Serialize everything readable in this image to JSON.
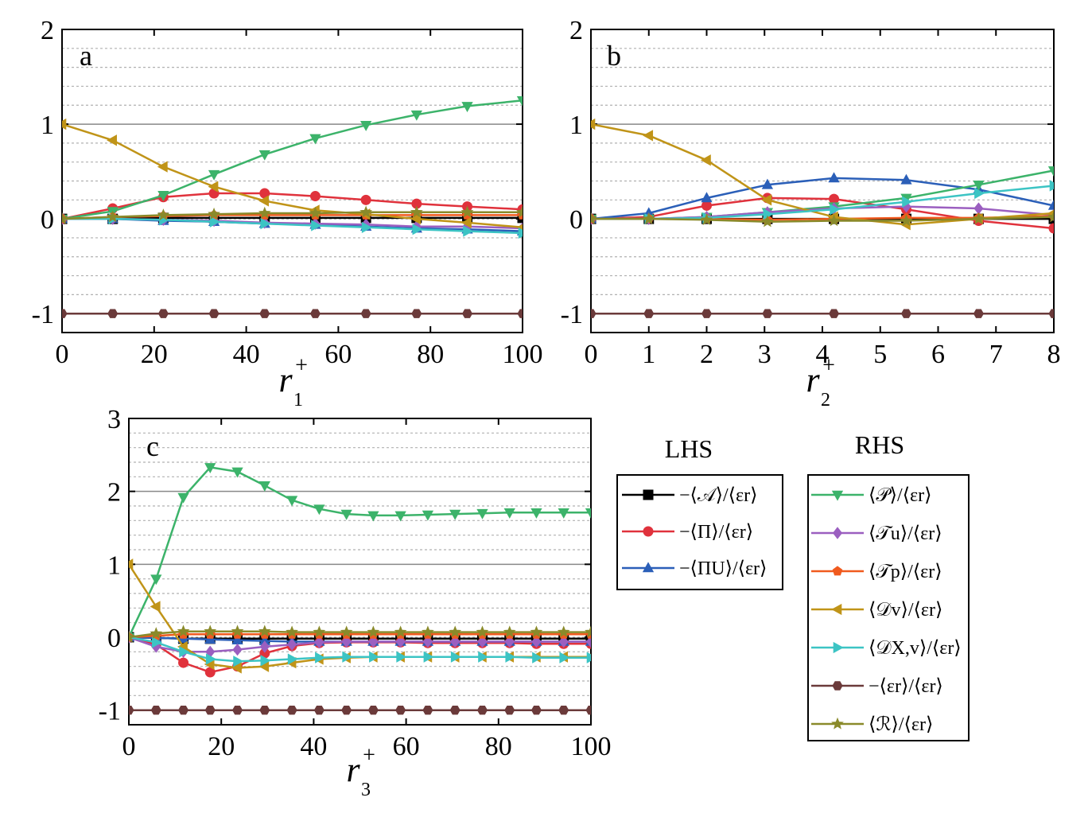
{
  "colors": {
    "A": "#000000",
    "Pi": "#e0323c",
    "PiU": "#2b5fb8",
    "P": "#3cb36a",
    "Tu": "#9b5fc0",
    "Tp": "#f05a1e",
    "Dv": "#c09418",
    "DXv": "#3cc4c4",
    "er": "#6b3a3a",
    "R": "#8a8a2a",
    "grid_major": "#888888",
    "grid_minor": "#b0b0b0"
  },
  "legend": {
    "lhs_title": "LHS",
    "rhs_title": "RHS",
    "lhs_items": [
      {
        "key": "A",
        "marker": "square",
        "label": "−⟨𝒜⟩/⟨εr⟩"
      },
      {
        "key": "Pi",
        "marker": "circle",
        "label": "−⟨Π⟩/⟨εr⟩"
      },
      {
        "key": "PiU",
        "marker": "triangle-up",
        "label": "−⟨ΠU⟩/⟨εr⟩"
      }
    ],
    "rhs_items": [
      {
        "key": "P",
        "marker": "triangle-down",
        "label": "⟨𝒫⟩/⟨εr⟩"
      },
      {
        "key": "Tu",
        "marker": "diamond",
        "label": "⟨𝒯u⟩/⟨εr⟩"
      },
      {
        "key": "Tp",
        "marker": "pentagon",
        "label": "⟨𝒯p⟩/⟨εr⟩"
      },
      {
        "key": "Dv",
        "marker": "triangle-left",
        "label": "⟨𝒟v⟩/⟨εr⟩"
      },
      {
        "key": "DXv",
        "marker": "triangle-right",
        "label": "⟨𝒟X,v⟩/⟨εr⟩"
      },
      {
        "key": "er",
        "marker": "hexagon",
        "label": "−⟨εr⟩/⟨εr⟩"
      },
      {
        "key": "R",
        "marker": "star",
        "label": "⟨ℛ⟩/⟨εr⟩"
      }
    ]
  },
  "chart_data": [
    {
      "type": "line",
      "panel": "a",
      "xlabel_var": "r",
      "xlabel_sup": "+",
      "xlabel_sub": "1",
      "xlim": [
        0,
        100
      ],
      "ylim": [
        -1.2,
        2
      ],
      "xticks": [
        0,
        20,
        40,
        60,
        80,
        100
      ],
      "yticks": [
        -1,
        0,
        1,
        2
      ],
      "grid": true,
      "x": [
        0,
        11,
        22,
        33,
        44,
        55,
        66,
        77,
        88,
        100
      ],
      "series": [
        {
          "key": "A",
          "values": [
            0,
            0,
            0.01,
            0.01,
            0.01,
            0.01,
            0.01,
            0.01,
            0.01,
            0.01
          ]
        },
        {
          "key": "Pi",
          "values": [
            0,
            0.11,
            0.23,
            0.27,
            0.27,
            0.24,
            0.2,
            0.16,
            0.13,
            0.1
          ]
        },
        {
          "key": "PiU",
          "values": [
            0,
            0,
            -0.02,
            -0.03,
            -0.05,
            -0.06,
            -0.08,
            -0.1,
            -0.11,
            -0.13
          ]
        },
        {
          "key": "P",
          "values": [
            0,
            0.08,
            0.25,
            0.47,
            0.68,
            0.85,
            0.99,
            1.1,
            1.19,
            1.25
          ]
        },
        {
          "key": "Tu",
          "values": [
            0,
            0,
            -0.01,
            -0.02,
            -0.04,
            -0.05,
            -0.06,
            -0.08,
            -0.08,
            -0.1
          ]
        },
        {
          "key": "Tp",
          "values": [
            0,
            0.02,
            0.03,
            0.04,
            0.04,
            0.04,
            0.04,
            0.04,
            0.04,
            0.04
          ]
        },
        {
          "key": "Dv",
          "values": [
            1,
            0.83,
            0.55,
            0.34,
            0.19,
            0.09,
            0.05,
            0.0,
            -0.04,
            -0.09
          ]
        },
        {
          "key": "DXv",
          "values": [
            0,
            0,
            -0.01,
            -0.03,
            -0.05,
            -0.07,
            -0.09,
            -0.11,
            -0.13,
            -0.15
          ]
        },
        {
          "key": "er",
          "values": [
            -1,
            -1,
            -1,
            -1,
            -1,
            -1,
            -1,
            -1,
            -1,
            -1
          ]
        },
        {
          "key": "R",
          "values": [
            0,
            0.02,
            0.04,
            0.05,
            0.06,
            0.06,
            0.07,
            0.07,
            0.07,
            0.07
          ]
        }
      ]
    },
    {
      "type": "line",
      "panel": "b",
      "xlabel_var": "r",
      "xlabel_sup": "+",
      "xlabel_sub": "2",
      "xlim": [
        0,
        8
      ],
      "ylim": [
        -1.2,
        2
      ],
      "xticks": [
        0,
        1,
        2,
        3,
        4,
        5,
        6,
        7,
        8
      ],
      "yticks": [
        -1,
        0,
        1,
        2
      ],
      "grid": true,
      "x": [
        0,
        1,
        2,
        3.05,
        4.2,
        5.45,
        6.7,
        8
      ],
      "series": [
        {
          "key": "A",
          "values": [
            0,
            0,
            0,
            0,
            0,
            0,
            0,
            0
          ]
        },
        {
          "key": "Pi",
          "values": [
            0,
            0.02,
            0.14,
            0.22,
            0.21,
            0.1,
            -0.02,
            -0.1
          ]
        },
        {
          "key": "PiU",
          "values": [
            0,
            0.06,
            0.22,
            0.36,
            0.43,
            0.41,
            0.31,
            0.14
          ]
        },
        {
          "key": "P",
          "values": [
            0,
            0.0,
            0.02,
            0.07,
            0.13,
            0.22,
            0.36,
            0.51
          ]
        },
        {
          "key": "Tu",
          "values": [
            0,
            0.0,
            0.02,
            0.07,
            0.11,
            0.13,
            0.11,
            0.04
          ]
        },
        {
          "key": "Tp",
          "values": [
            0,
            0.0,
            0.0,
            -0.01,
            0.0,
            0.01,
            0.01,
            0.03
          ]
        },
        {
          "key": "Dv",
          "values": [
            1,
            0.88,
            0.62,
            0.2,
            0.02,
            -0.06,
            0.0,
            0.06
          ]
        },
        {
          "key": "DXv",
          "values": [
            0,
            0.0,
            0.01,
            0.05,
            0.1,
            0.18,
            0.27,
            0.35
          ]
        },
        {
          "key": "er",
          "values": [
            -1,
            -1,
            -1,
            -1,
            -1,
            -1,
            -1,
            -1
          ]
        },
        {
          "key": "R",
          "values": [
            0,
            0.0,
            -0.01,
            -0.03,
            -0.02,
            -0.02,
            0.0,
            0.02
          ]
        }
      ]
    },
    {
      "type": "line",
      "panel": "c",
      "xlabel_var": "r",
      "xlabel_sup": "+",
      "xlabel_sub": "3",
      "xlim": [
        0,
        100
      ],
      "ylim": [
        -1.2,
        3
      ],
      "xticks": [
        0,
        20,
        40,
        60,
        80,
        100
      ],
      "yticks": [
        -1,
        0,
        1,
        2,
        3
      ],
      "grid": true,
      "x": [
        0,
        5.9,
        11.8,
        17.6,
        23.5,
        29.4,
        35.3,
        41.2,
        47.1,
        52.9,
        58.8,
        64.7,
        70.6,
        76.5,
        82.4,
        88.2,
        94.1,
        100
      ],
      "series": [
        {
          "key": "A",
          "values": [
            0,
            -0.01,
            -0.02,
            -0.02,
            -0.02,
            -0.02,
            -0.02,
            -0.02,
            -0.02,
            -0.02,
            -0.02,
            -0.02,
            -0.02,
            -0.02,
            -0.02,
            -0.02,
            -0.02,
            -0.02
          ]
        },
        {
          "key": "Pi",
          "values": [
            0,
            -0.1,
            -0.35,
            -0.48,
            -0.4,
            -0.22,
            -0.12,
            -0.08,
            -0.07,
            -0.07,
            -0.07,
            -0.08,
            -0.08,
            -0.08,
            -0.08,
            -0.09,
            -0.09,
            -0.09
          ]
        },
        {
          "key": "PiU",
          "values": [
            0,
            -0.01,
            -0.02,
            -0.03,
            -0.04,
            -0.05,
            -0.06,
            -0.06,
            -0.06,
            -0.06,
            -0.06,
            -0.06,
            -0.06,
            -0.06,
            -0.06,
            -0.06,
            -0.06,
            -0.06
          ]
        },
        {
          "key": "P",
          "values": [
            0,
            0.8,
            1.92,
            2.33,
            2.27,
            2.08,
            1.88,
            1.76,
            1.69,
            1.67,
            1.67,
            1.68,
            1.69,
            1.7,
            1.71,
            1.71,
            1.71,
            1.71
          ]
        },
        {
          "key": "Tu",
          "values": [
            0,
            -0.13,
            -0.2,
            -0.2,
            -0.17,
            -0.13,
            -0.1,
            -0.07,
            -0.06,
            -0.06,
            -0.06,
            -0.06,
            -0.06,
            -0.06,
            -0.06,
            -0.06,
            -0.06,
            -0.06
          ]
        },
        {
          "key": "Tp",
          "values": [
            0,
            0.02,
            0.04,
            0.04,
            0.04,
            0.04,
            0.04,
            0.04,
            0.04,
            0.04,
            0.04,
            0.04,
            0.04,
            0.04,
            0.04,
            0.04,
            0.04,
            0.04
          ]
        },
        {
          "key": "Dv",
          "values": [
            1,
            0.42,
            -0.13,
            -0.37,
            -0.42,
            -0.4,
            -0.35,
            -0.3,
            -0.28,
            -0.27,
            -0.27,
            -0.27,
            -0.27,
            -0.27,
            -0.27,
            -0.27,
            -0.27,
            -0.27
          ]
        },
        {
          "key": "DXv",
          "values": [
            0,
            -0.07,
            -0.2,
            -0.3,
            -0.33,
            -0.32,
            -0.3,
            -0.28,
            -0.27,
            -0.27,
            -0.27,
            -0.27,
            -0.27,
            -0.27,
            -0.27,
            -0.28,
            -0.28,
            -0.28
          ]
        },
        {
          "key": "er",
          "values": [
            -1,
            -1,
            -1,
            -1,
            -1,
            -1,
            -1,
            -1,
            -1,
            -1,
            -1,
            -1,
            -1,
            -1,
            -1,
            -1,
            -1,
            -1
          ]
        },
        {
          "key": "R",
          "values": [
            0,
            0.05,
            0.08,
            0.08,
            0.08,
            0.08,
            0.07,
            0.07,
            0.07,
            0.07,
            0.07,
            0.07,
            0.07,
            0.07,
            0.07,
            0.07,
            0.07,
            0.07
          ]
        }
      ]
    }
  ]
}
